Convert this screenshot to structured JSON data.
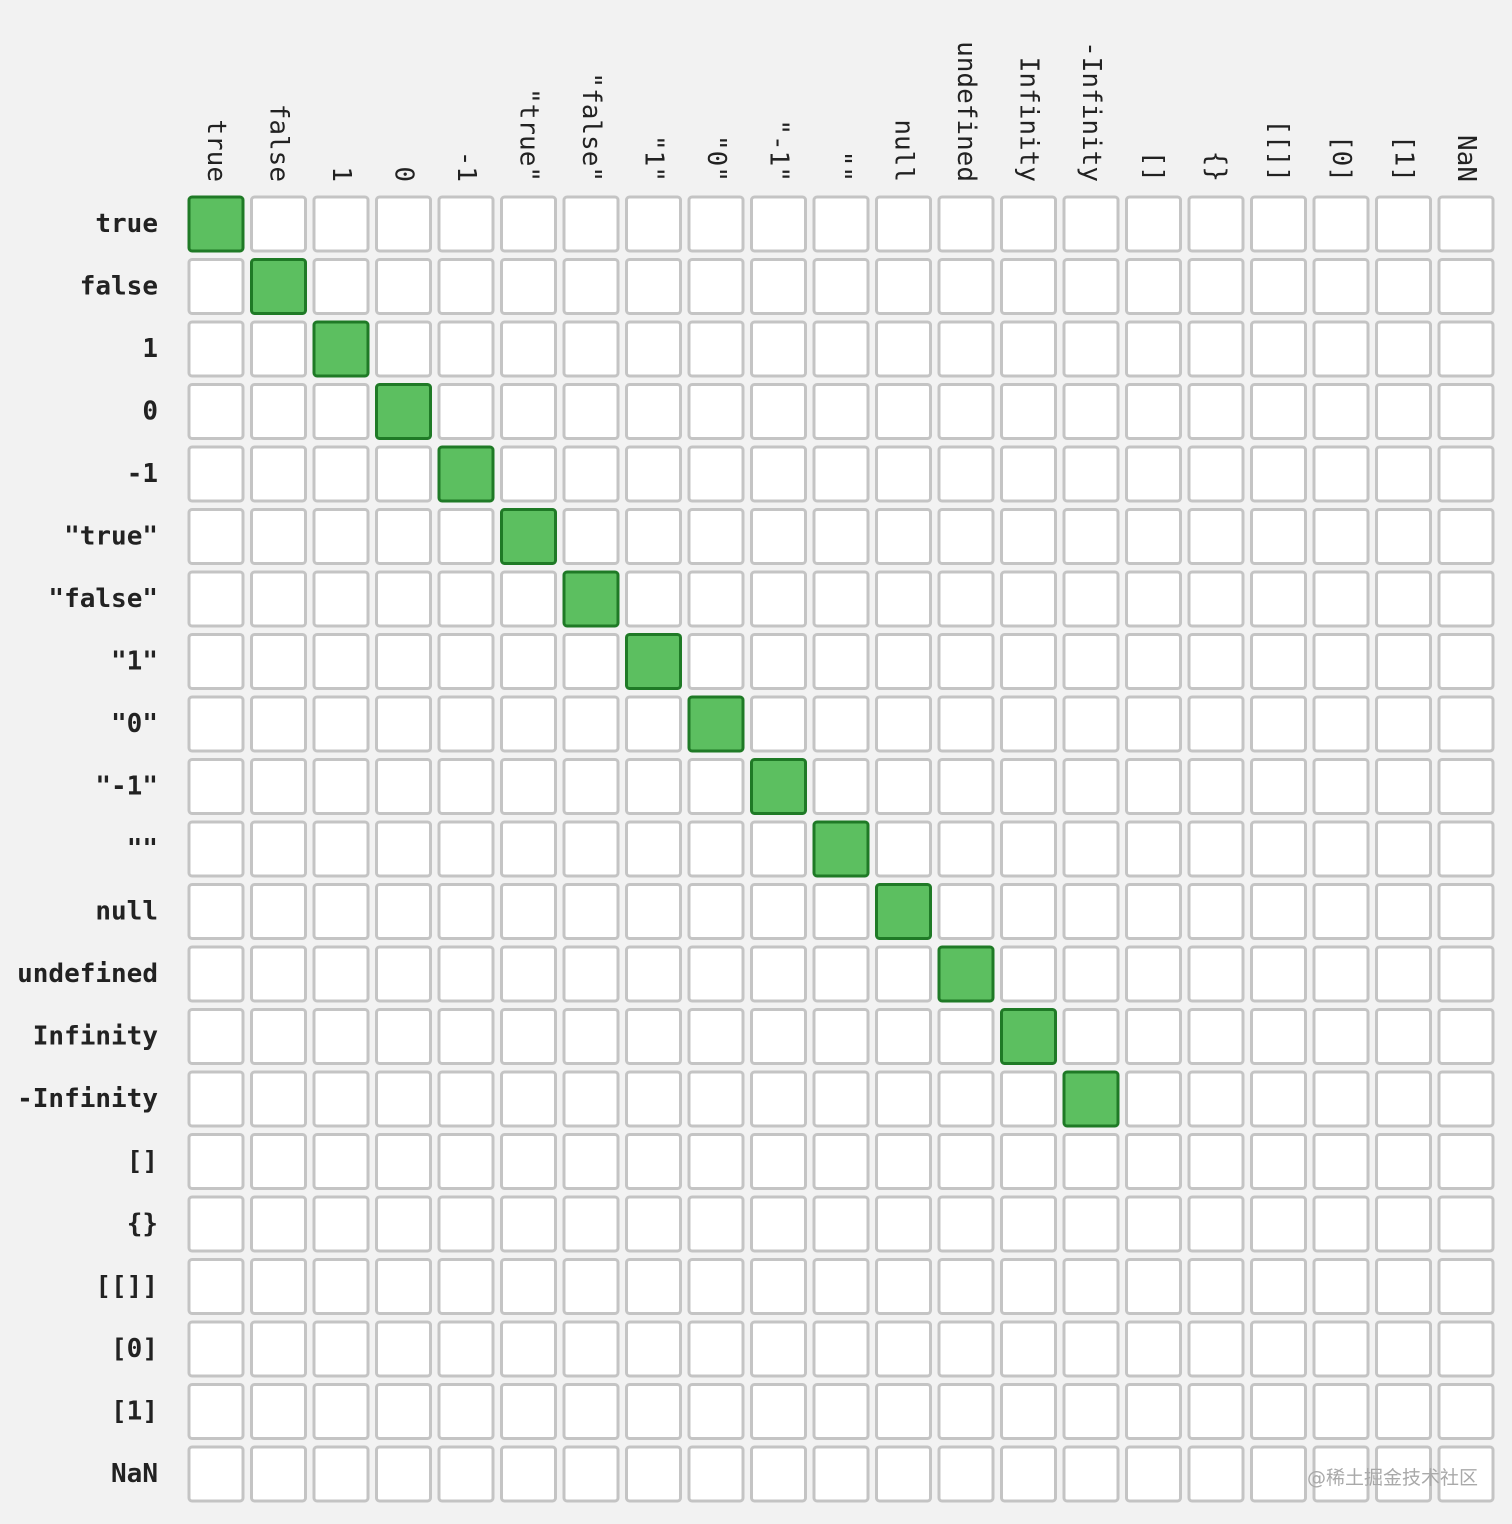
{
  "chart_data": {
    "type": "heatmap",
    "title": "",
    "xlabel": "",
    "ylabel": "",
    "rows": [
      "true",
      "false",
      "1",
      "0",
      "-1",
      "\"true\"",
      "\"false\"",
      "\"1\"",
      "\"0\"",
      "\"-1\"",
      "\"\"",
      "null",
      "undefined",
      "Infinity",
      "-Infinity",
      "[]",
      "{}",
      "[[]]",
      "[0]",
      "[1]",
      "NaN"
    ],
    "columns": [
      "true",
      "false",
      "1",
      "0",
      "-1",
      "\"true\"",
      "\"false\"",
      "\"1\"",
      "\"0\"",
      "\"-1\"",
      "\"\"",
      "null",
      "undefined",
      "Infinity",
      "-Infinity",
      "[]",
      "{}",
      "[[]]",
      "[0]",
      "[1]",
      "NaN"
    ],
    "values": [
      [
        1,
        0,
        0,
        0,
        0,
        0,
        0,
        0,
        0,
        0,
        0,
        0,
        0,
        0,
        0,
        0,
        0,
        0,
        0,
        0,
        0
      ],
      [
        0,
        1,
        0,
        0,
        0,
        0,
        0,
        0,
        0,
        0,
        0,
        0,
        0,
        0,
        0,
        0,
        0,
        0,
        0,
        0,
        0
      ],
      [
        0,
        0,
        1,
        0,
        0,
        0,
        0,
        0,
        0,
        0,
        0,
        0,
        0,
        0,
        0,
        0,
        0,
        0,
        0,
        0,
        0
      ],
      [
        0,
        0,
        0,
        1,
        0,
        0,
        0,
        0,
        0,
        0,
        0,
        0,
        0,
        0,
        0,
        0,
        0,
        0,
        0,
        0,
        0
      ],
      [
        0,
        0,
        0,
        0,
        1,
        0,
        0,
        0,
        0,
        0,
        0,
        0,
        0,
        0,
        0,
        0,
        0,
        0,
        0,
        0,
        0
      ],
      [
        0,
        0,
        0,
        0,
        0,
        1,
        0,
        0,
        0,
        0,
        0,
        0,
        0,
        0,
        0,
        0,
        0,
        0,
        0,
        0,
        0
      ],
      [
        0,
        0,
        0,
        0,
        0,
        0,
        1,
        0,
        0,
        0,
        0,
        0,
        0,
        0,
        0,
        0,
        0,
        0,
        0,
        0,
        0
      ],
      [
        0,
        0,
        0,
        0,
        0,
        0,
        0,
        1,
        0,
        0,
        0,
        0,
        0,
        0,
        0,
        0,
        0,
        0,
        0,
        0,
        0
      ],
      [
        0,
        0,
        0,
        0,
        0,
        0,
        0,
        0,
        1,
        0,
        0,
        0,
        0,
        0,
        0,
        0,
        0,
        0,
        0,
        0,
        0
      ],
      [
        0,
        0,
        0,
        0,
        0,
        0,
        0,
        0,
        0,
        1,
        0,
        0,
        0,
        0,
        0,
        0,
        0,
        0,
        0,
        0,
        0
      ],
      [
        0,
        0,
        0,
        0,
        0,
        0,
        0,
        0,
        0,
        0,
        1,
        0,
        0,
        0,
        0,
        0,
        0,
        0,
        0,
        0,
        0
      ],
      [
        0,
        0,
        0,
        0,
        0,
        0,
        0,
        0,
        0,
        0,
        0,
        1,
        0,
        0,
        0,
        0,
        0,
        0,
        0,
        0,
        0
      ],
      [
        0,
        0,
        0,
        0,
        0,
        0,
        0,
        0,
        0,
        0,
        0,
        0,
        1,
        0,
        0,
        0,
        0,
        0,
        0,
        0,
        0
      ],
      [
        0,
        0,
        0,
        0,
        0,
        0,
        0,
        0,
        0,
        0,
        0,
        0,
        0,
        1,
        0,
        0,
        0,
        0,
        0,
        0,
        0
      ],
      [
        0,
        0,
        0,
        0,
        0,
        0,
        0,
        0,
        0,
        0,
        0,
        0,
        0,
        0,
        1,
        0,
        0,
        0,
        0,
        0,
        0
      ],
      [
        0,
        0,
        0,
        0,
        0,
        0,
        0,
        0,
        0,
        0,
        0,
        0,
        0,
        0,
        0,
        0,
        0,
        0,
        0,
        0,
        0
      ],
      [
        0,
        0,
        0,
        0,
        0,
        0,
        0,
        0,
        0,
        0,
        0,
        0,
        0,
        0,
        0,
        0,
        0,
        0,
        0,
        0,
        0
      ],
      [
        0,
        0,
        0,
        0,
        0,
        0,
        0,
        0,
        0,
        0,
        0,
        0,
        0,
        0,
        0,
        0,
        0,
        0,
        0,
        0,
        0
      ],
      [
        0,
        0,
        0,
        0,
        0,
        0,
        0,
        0,
        0,
        0,
        0,
        0,
        0,
        0,
        0,
        0,
        0,
        0,
        0,
        0,
        0
      ],
      [
        0,
        0,
        0,
        0,
        0,
        0,
        0,
        0,
        0,
        0,
        0,
        0,
        0,
        0,
        0,
        0,
        0,
        0,
        0,
        0,
        0
      ],
      [
        0,
        0,
        0,
        0,
        0,
        0,
        0,
        0,
        0,
        0,
        0,
        0,
        0,
        0,
        0,
        0,
        0,
        0,
        0,
        0,
        0
      ]
    ],
    "grid": true,
    "legend": "none",
    "colors": {
      "filled": "#5cbf60",
      "filled_border": "#1f7a26",
      "empty": "#ffffff",
      "empty_border": "#c4c4c4",
      "background": "#f2f2f2"
    }
  },
  "watermark": "@稀土掘金技术社区"
}
